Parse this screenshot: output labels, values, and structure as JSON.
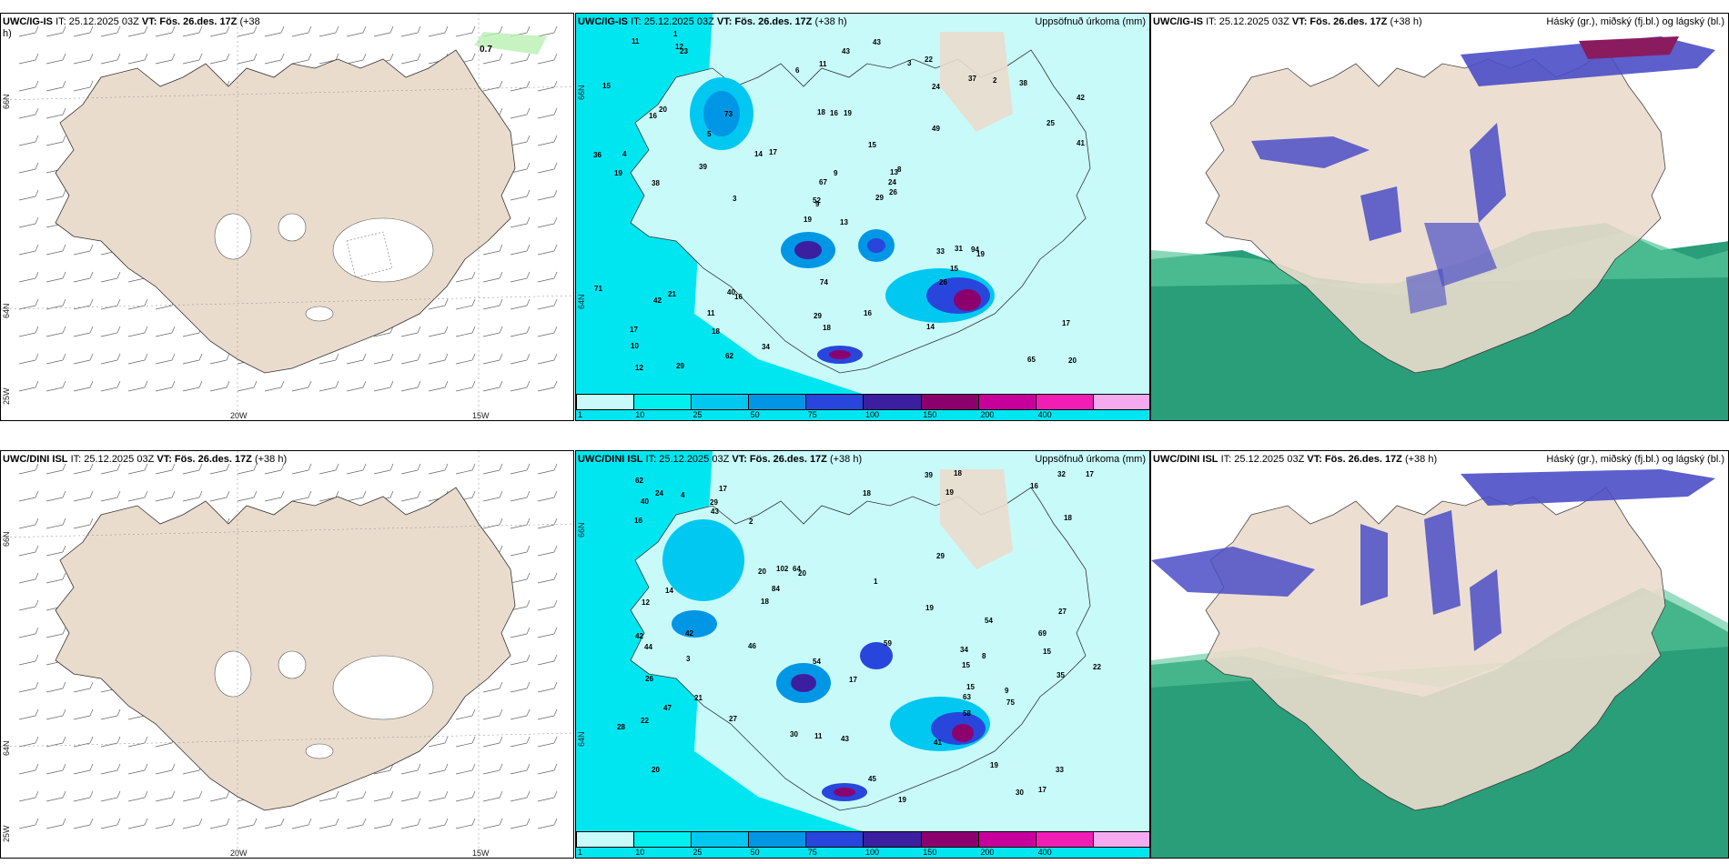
{
  "panels": {
    "top_wind": {
      "title_model": "UWC/IG-IS",
      "title_it": "IT: 25.12.2025 03Z",
      "title_vt": "VT: Fös. 26.des. 17Z",
      "title_lead": "(+38",
      "title_wrap": "h)",
      "annotation": "0.7",
      "lat_labels": [
        "66N",
        "64N",
        "25W"
      ],
      "lon_labels": [
        "20W",
        "15W"
      ]
    },
    "top_precip": {
      "title_model": "UWC/IG-IS",
      "title_it": "IT: 25.12.2025 03Z",
      "title_vt": "VT: Fös. 26.des. 17Z",
      "title_lead": "(+38 h)",
      "right_title": "Uppsöfnuð úrkoma (mm)",
      "lat_labels": [
        "66N",
        "64N"
      ],
      "values": [
        "13",
        "16",
        "9",
        "17",
        "13",
        "16",
        "22",
        "19",
        "24",
        "29",
        "23",
        "20",
        "38",
        "42",
        "19",
        "49",
        "29",
        "18",
        "15",
        "21",
        "17",
        "10",
        "18",
        "16",
        "8",
        "19",
        "20",
        "11",
        "19",
        "33",
        "41",
        "52",
        "29",
        "67",
        "73",
        "37",
        "40",
        "65",
        "17",
        "94",
        "43",
        "14",
        "39",
        "26",
        "62",
        "36",
        "24",
        "12",
        "18",
        "26",
        "42",
        "25",
        "15",
        "15",
        "14",
        "11",
        "12",
        "11",
        "16",
        "38",
        "43",
        "3",
        "4",
        "5",
        "2",
        "1",
        "3",
        "6",
        "9",
        "71",
        "74",
        "34",
        "31"
      ]
    },
    "top_cloud": {
      "title_model": "UWC/IG-IS",
      "title_it": "IT: 25.12.2025 03Z",
      "title_vt": "VT: Fös. 26.des. 17Z",
      "title_lead": "(+38 h)",
      "right_title": "Háský (gr.), miðský (fj.bl.) og lágský (bl.)"
    },
    "bot_wind": {
      "title_model": "UWC/DINI ISL",
      "title_it": "IT: 25.12.2025 03Z",
      "title_vt": "VT: Fös. 26.des. 17Z",
      "title_lead": "(+38 h)",
      "lat_labels": [
        "66N",
        "64N",
        "25W"
      ],
      "lon_labels": [
        "20W",
        "15W"
      ]
    },
    "bot_precip": {
      "title_model": "UWC/DINI ISL",
      "title_it": "IT: 25.12.2025 03Z",
      "title_vt": "VT: Fös. 26.des. 17Z",
      "title_lead": "(+38 h)",
      "right_title": "Uppsöfnuð úrkoma (mm)",
      "lat_labels": [
        "66N",
        "64N"
      ],
      "values": [
        "15",
        "15",
        "20",
        "17",
        "20",
        "19",
        "22",
        "19",
        "20",
        "19",
        "16",
        "42",
        "40",
        "33",
        "30",
        "27",
        "17",
        "59",
        "64",
        "21",
        "17",
        "16",
        "18",
        "35",
        "39",
        "29",
        "15",
        "44",
        "43",
        "54",
        "45",
        "41",
        "84",
        "46",
        "69",
        "75",
        "63",
        "42",
        "43",
        "47",
        "18",
        "18",
        "17",
        "11",
        "9",
        "27",
        "28",
        "24",
        "19",
        "12",
        "22",
        "102",
        "32",
        "34",
        "58",
        "30",
        "29",
        "62",
        "3",
        "4",
        "8",
        "2",
        "1",
        "26",
        "18",
        "14",
        "54"
      ]
    },
    "bot_cloud": {
      "title_model": "UWC/DINI ISL",
      "title_it": "IT: 25.12.2025 03Z",
      "title_vt": "VT: Fös. 26.des. 17Z",
      "title_lead": "(+38 h)",
      "right_title": "Háský (gr.), miðský (fj.bl.) og lágský (bl.)"
    }
  },
  "colorbar": {
    "ticks": [
      "1",
      "10",
      "25",
      "50",
      "75",
      "100",
      "150",
      "200",
      "400"
    ],
    "colors": [
      "#c8fafa",
      "#00f0f0",
      "#00c8f0",
      "#0096e6",
      "#2846dc",
      "#3c1ea0",
      "#8c006e",
      "#c8009b",
      "#f01eb4",
      "#f5aaf0"
    ]
  },
  "colors": {
    "land": "#eadccd",
    "sea_precip": "#00e6f0",
    "cloud_high": "#2a9d79",
    "cloud_mid": "#4b4ec7",
    "cloud_low": "#8a1b5e"
  }
}
